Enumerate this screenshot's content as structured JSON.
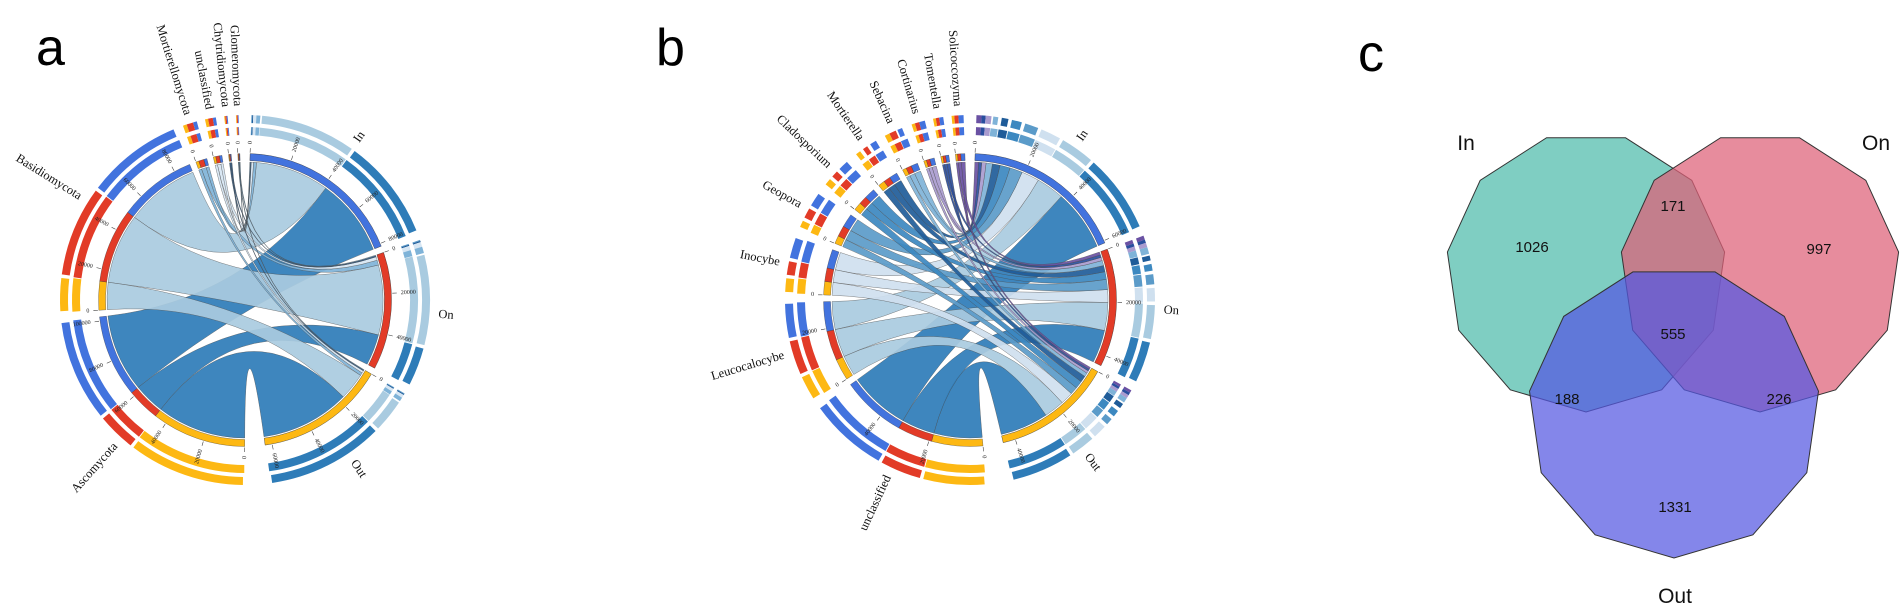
{
  "panel_labels": [
    "a",
    "b",
    "c"
  ],
  "chart_data": [
    {
      "panel": "a",
      "type": "chord",
      "description": "Chord diagram: fungal phyla vs compartments",
      "group_sites": [
        "In",
        "On",
        "Out"
      ],
      "site_colors": [
        "#4273DE",
        "#E23B27",
        "#FDB813"
      ],
      "axis_tick_interval": 20000,
      "taxa": [
        {
          "name": "Ascomycota",
          "color": "#2E7CB8",
          "flows_in_on_out": [
            40000,
            16000,
            46000
          ]
        },
        {
          "name": "Basidiomycota",
          "color": "#A9CBE0",
          "flows_in_on_out": [
            38000,
            36000,
            14000
          ]
        },
        {
          "name": "Mortierellomycota",
          "color": "#7FB3D8",
          "flows_in_on_out": [
            1500,
            2500,
            1500
          ]
        },
        {
          "name": "unclassified",
          "color": "#D7E6F3",
          "flows_in_on_out": [
            1200,
            1800,
            1200
          ]
        },
        {
          "name": "Chytridiomycota",
          "color": "#1F5C99",
          "flows_in_on_out": [
            400,
            500,
            400
          ]
        },
        {
          "name": "Glomeromycota",
          "color": "#5B9BC9",
          "flows_in_on_out": [
            300,
            400,
            300
          ]
        }
      ]
    },
    {
      "panel": "b",
      "type": "chord",
      "description": "Chord diagram: fungal genera vs compartments",
      "group_sites": [
        "In",
        "On",
        "Out"
      ],
      "site_colors": [
        "#4273DE",
        "#E23B27",
        "#FDB813"
      ],
      "axis_tick_interval": 20000,
      "taxa": [
        {
          "name": "unclassified",
          "color": "#2E7CB8",
          "flows_in_on_out": [
            24000,
            13000,
            19000
          ]
        },
        {
          "name": "Leucocalocybe",
          "color": "#A9CBE0",
          "flows_in_on_out": [
            11000,
            11000,
            8000
          ]
        },
        {
          "name": "Inocybe",
          "color": "#CFE0EF",
          "flows_in_on_out": [
            7000,
            5000,
            5000
          ]
        },
        {
          "name": "Geopora",
          "color": "#5B9BC9",
          "flows_in_on_out": [
            5000,
            4000,
            3000
          ]
        },
        {
          "name": "Cladosporium",
          "color": "#3C88C0",
          "flows_in_on_out": [
            4000,
            3000,
            3000
          ]
        },
        {
          "name": "Mortierella",
          "color": "#1F5C99",
          "flows_in_on_out": [
            3000,
            2500,
            2500
          ]
        },
        {
          "name": "Sebacina",
          "color": "#7FB3D8",
          "flows_in_on_out": [
            2500,
            2000,
            1500
          ]
        },
        {
          "name": "Cortinarius",
          "color": "#A99BCF",
          "flows_in_on_out": [
            1700,
            1300,
            1000
          ]
        },
        {
          "name": "Tomentella",
          "color": "#2A4E9E",
          "flows_in_on_out": [
            1200,
            1000,
            800
          ]
        },
        {
          "name": "Solicoccozyma",
          "color": "#6A51A3",
          "flows_in_on_out": [
            1500,
            1200,
            800
          ]
        }
      ]
    },
    {
      "panel": "c",
      "type": "venn",
      "description": "Venn diagram of shared OTUs between compartments",
      "sets": [
        {
          "name": "In",
          "color": "#4DBBAA"
        },
        {
          "name": "On",
          "color": "#DE5F77"
        },
        {
          "name": "Out",
          "color": "#5557E2"
        }
      ],
      "regions": [
        {
          "zone": "In only",
          "value": "1026"
        },
        {
          "zone": "On only",
          "value": "997"
        },
        {
          "zone": "Out only",
          "value": "1331"
        },
        {
          "zone": "In ∩ On",
          "value": "171"
        },
        {
          "zone": "In ∩ Out",
          "value": "188"
        },
        {
          "zone": "On ∩ Out",
          "value": "226"
        },
        {
          "zone": "In ∩ On ∩ Out",
          "value": "555"
        }
      ]
    }
  ]
}
